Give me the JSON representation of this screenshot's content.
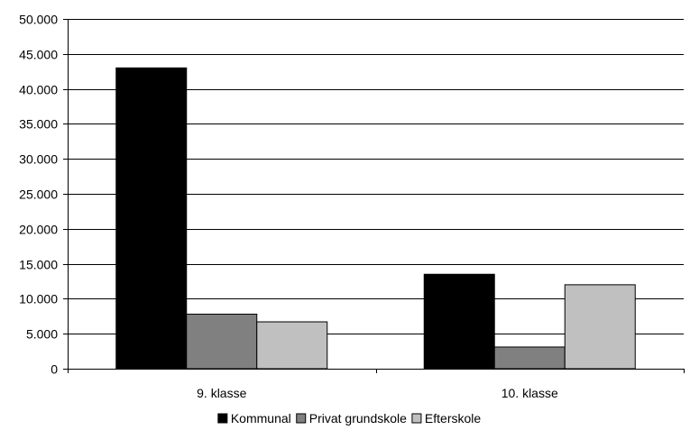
{
  "chart_data": {
    "type": "bar",
    "categories": [
      "9. klasse",
      "10. klasse"
    ],
    "series": [
      {
        "name": "Kommunal",
        "color": "#000000",
        "values": [
          43000,
          13500
        ]
      },
      {
        "name": "Privat grundskole",
        "color": "#808080",
        "values": [
          7800,
          3100
        ]
      },
      {
        "name": "Efterskole",
        "color": "#c0c0c0",
        "values": [
          6700,
          12000
        ]
      }
    ],
    "ylim": [
      0,
      50000
    ],
    "ytick_step": 5000,
    "ytick_labels": [
      "0",
      "5.000",
      "10.000",
      "15.000",
      "20.000",
      "25.000",
      "30.000",
      "35.000",
      "40.000",
      "45.000",
      "50.000"
    ],
    "grid": true,
    "legend_position": "bottom"
  }
}
